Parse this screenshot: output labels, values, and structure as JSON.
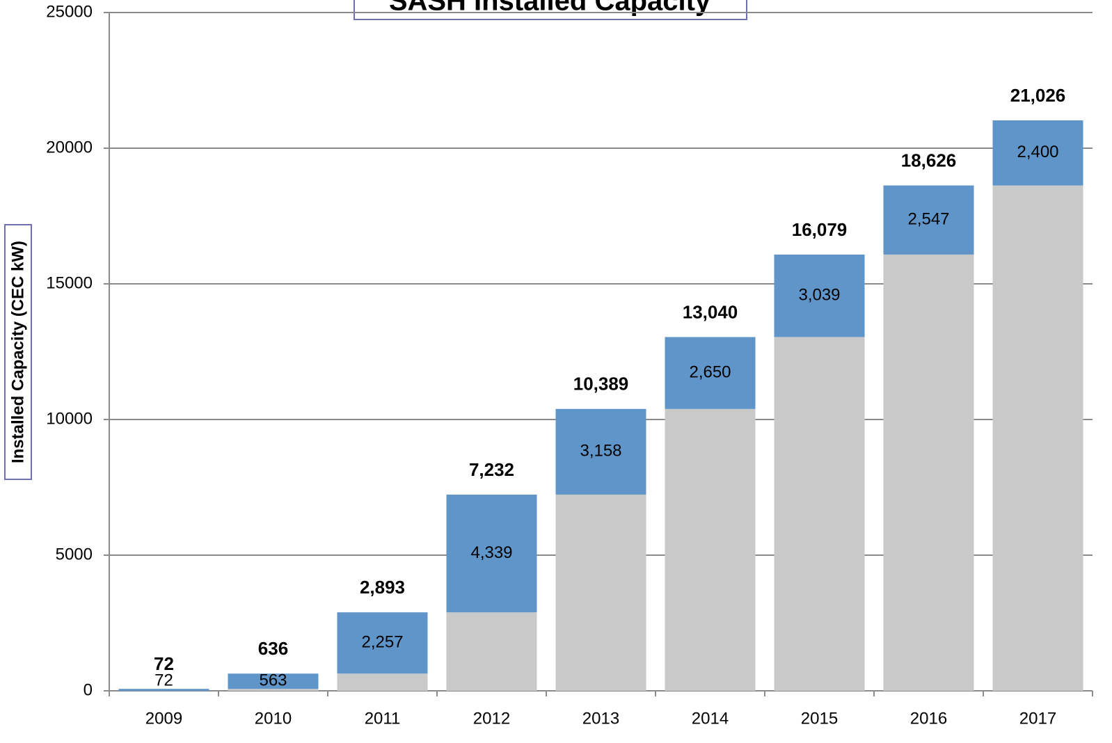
{
  "chart_data": {
    "type": "stacked_bar",
    "title": "SASH Installed Capacity",
    "y_label": "Installed Capacity (CEC kW)",
    "categories": [
      "2009",
      "2010",
      "2011",
      "2012",
      "2013",
      "2014",
      "2015",
      "2016",
      "2017"
    ],
    "series": [
      {
        "color": "#c9c9c9",
        "values": [
          0,
          72,
          636,
          2893,
          7232,
          10389,
          13040,
          16079,
          18626
        ]
      },
      {
        "color": "#5f95c8",
        "values": [
          72,
          563,
          2257,
          4339,
          3158,
          2650,
          3039,
          2547,
          2400
        ],
        "value_labels": [
          "72",
          "563",
          "2,257",
          "4,339",
          "3,158",
          "2,650",
          "3,039",
          "2,547",
          "2,400"
        ]
      }
    ],
    "totals": [
      72,
      636,
      2893,
      7232,
      10389,
      13040,
      16079,
      18626,
      21026
    ],
    "total_labels": [
      "72",
      "636",
      "2,893",
      "7,232",
      "10,389",
      "13,040",
      "16,079",
      "18,626",
      "21,026"
    ],
    "ylim": [
      0,
      25000
    ],
    "yticks": [
      0,
      5000,
      10000,
      15000,
      20000,
      25000
    ],
    "grid": true
  }
}
